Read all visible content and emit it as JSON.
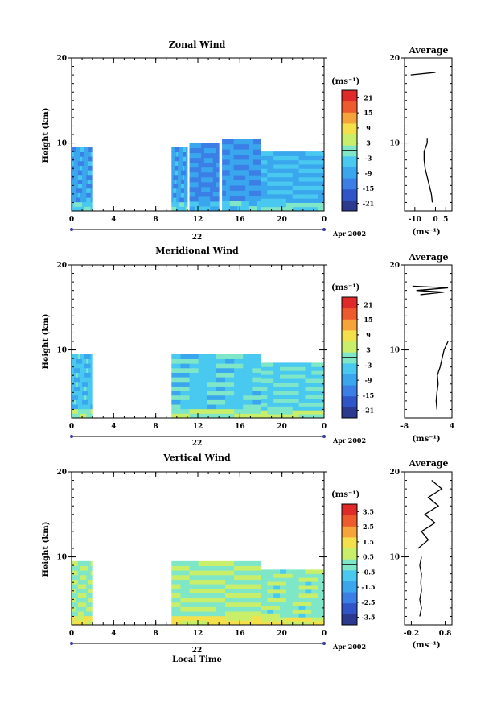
{
  "figure": {
    "date_label": "Apr 2002",
    "xlabel_bottom": "Local Time"
  },
  "chart_data": [
    {
      "type": "heatmap",
      "title": "Zonal Wind",
      "ylabel": "Height (km)",
      "xlabel": "",
      "x_ticks": [
        "0",
        "4",
        "8",
        "12",
        "16",
        "20",
        "0"
      ],
      "x_range": [
        0,
        24
      ],
      "y_range": [
        2,
        20
      ],
      "y_ticks": [
        10,
        20
      ],
      "date_tick": "22",
      "colorbar": {
        "unit": "(ms⁻¹)",
        "ticks": [
          "21",
          "15",
          "9",
          "3",
          "-3",
          "-9",
          "-15",
          "-21"
        ],
        "range": [
          -24,
          24
        ]
      },
      "data_blocks": [
        {
          "t0": 0,
          "t1": 2,
          "h0": 2,
          "h1": 9.5,
          "value": -9
        },
        {
          "t0": 9.5,
          "t1": 11,
          "h0": 2,
          "h1": 9.5,
          "value": -9
        },
        {
          "t0": 11.2,
          "t1": 14,
          "h0": 2,
          "h1": 10,
          "value": -12
        },
        {
          "t0": 14.3,
          "t1": 18,
          "h0": 2,
          "h1": 10.5,
          "value": -10
        },
        {
          "t0": 18,
          "t1": 24,
          "h0": 2,
          "h1": 9,
          "value": -7
        }
      ],
      "average": {
        "title": "Average",
        "unit": "(ms⁻¹)",
        "x_ticks": [
          "-10",
          "0",
          "5"
        ],
        "x_range": [
          -15,
          8
        ],
        "y_range": [
          2,
          20
        ],
        "y_ticks": [
          10,
          20
        ],
        "profile": [
          [
            -1.5,
            3
          ],
          [
            -2,
            4
          ],
          [
            -3,
            5
          ],
          [
            -4,
            6
          ],
          [
            -5,
            7
          ],
          [
            -5.5,
            8
          ],
          [
            -5.5,
            9
          ],
          [
            -4,
            10
          ],
          [
            -4,
            10.6
          ]
        ],
        "upper": [
          [
            -12,
            18
          ],
          [
            0,
            18.3
          ]
        ]
      }
    },
    {
      "type": "heatmap",
      "title": "Meridional Wind",
      "ylabel": "Height (km)",
      "xlabel": "",
      "x_ticks": [
        "0",
        "4",
        "8",
        "12",
        "16",
        "20",
        "0"
      ],
      "x_range": [
        0,
        24
      ],
      "y_range": [
        2,
        20
      ],
      "y_ticks": [
        10,
        20
      ],
      "date_tick": "22",
      "colorbar": {
        "unit": "(ms⁻¹)",
        "ticks": [
          "21",
          "15",
          "9",
          "3",
          "-3",
          "-9",
          "-15",
          "-21"
        ],
        "range": [
          -24,
          24
        ]
      },
      "data_blocks": [
        {
          "t0": 0,
          "t1": 2,
          "h0": 2,
          "h1": 9.5,
          "value": -5
        },
        {
          "t0": 9.5,
          "t1": 18,
          "h0": 2,
          "h1": 9.5,
          "value": -4
        },
        {
          "t0": 18,
          "t1": 24,
          "h0": 2,
          "h1": 8.5,
          "value": -3
        }
      ],
      "average": {
        "title": "Average",
        "unit": "(ms⁻¹)",
        "x_ticks": [
          "-8",
          "4"
        ],
        "x_range": [
          -8,
          4
        ],
        "y_range": [
          2,
          20
        ],
        "y_ticks": [
          10,
          20
        ],
        "profile": [
          [
            0.2,
            3
          ],
          [
            0,
            4
          ],
          [
            0.2,
            5
          ],
          [
            0.5,
            6
          ],
          [
            0.3,
            7
          ],
          [
            1,
            8
          ],
          [
            1.5,
            9
          ],
          [
            2,
            10
          ],
          [
            3,
            11
          ]
        ],
        "upper": [
          [
            -6,
            17.5
          ],
          [
            3,
            17.3
          ],
          [
            -5,
            17
          ],
          [
            2,
            16.8
          ],
          [
            -4,
            16.5
          ]
        ]
      }
    },
    {
      "type": "heatmap",
      "title": "Vertical Wind",
      "ylabel": "Height (km)",
      "xlabel": "Local Time",
      "x_ticks": [
        "0",
        "4",
        "8",
        "12",
        "16",
        "20",
        "0"
      ],
      "x_range": [
        0,
        24
      ],
      "y_range": [
        2,
        20
      ],
      "y_ticks": [
        10,
        20
      ],
      "date_tick": "22",
      "colorbar": {
        "unit": "(ms⁻¹)",
        "ticks": [
          "3.5",
          "2.5",
          "1.5",
          "0.5",
          "-0.5",
          "-1.5",
          "-2.5",
          "-3.5"
        ],
        "range": [
          -4,
          4
        ]
      },
      "data_blocks": [
        {
          "t0": 0,
          "t1": 2,
          "h0": 2,
          "h1": 9.5,
          "value": 0.2
        },
        {
          "t0": 9.5,
          "t1": 18,
          "h0": 2,
          "h1": 9.5,
          "value": 0.3
        },
        {
          "t0": 18,
          "t1": 24,
          "h0": 2,
          "h1": 8.5,
          "value": 0.1
        }
      ],
      "average": {
        "title": "Average",
        "unit": "(ms⁻¹)",
        "x_ticks": [
          "-0.2",
          "0.8"
        ],
        "x_range": [
          -0.4,
          1
        ],
        "y_range": [
          2,
          20
        ],
        "y_ticks": [
          10,
          20
        ],
        "profile": [
          [
            0.05,
            3
          ],
          [
            0.1,
            4
          ],
          [
            0.05,
            5
          ],
          [
            0.1,
            6
          ],
          [
            0.08,
            7
          ],
          [
            0.1,
            8
          ],
          [
            0.05,
            9
          ],
          [
            0.1,
            10
          ]
        ],
        "upper": [
          [
            0,
            11
          ],
          [
            0.3,
            12
          ],
          [
            0.1,
            13
          ],
          [
            0.5,
            14
          ],
          [
            0.2,
            15
          ],
          [
            0.6,
            16
          ],
          [
            0.3,
            17
          ],
          [
            0.7,
            18
          ],
          [
            0.4,
            19
          ]
        ]
      }
    }
  ]
}
